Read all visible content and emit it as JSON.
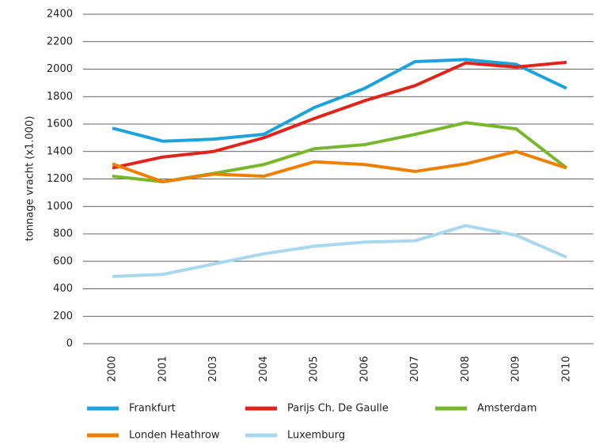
{
  "chart_data": {
    "type": "line",
    "y_label": "tonnage vracht (x1.000)",
    "categories": [
      "2000",
      "2001",
      "2003",
      "2004",
      "2005",
      "2006",
      "2007",
      "2008",
      "2009",
      "2010"
    ],
    "series": [
      {
        "name": "Frankfurt",
        "color": "#1aa3dc",
        "values": [
          1570,
          1475,
          1490,
          1525,
          1720,
          1860,
          2055,
          2070,
          2035,
          1860
        ]
      },
      {
        "name": "Parijs Ch. De Gaulle",
        "color": "#e2231a",
        "values": [
          1280,
          1360,
          1400,
          1500,
          1640,
          1770,
          1880,
          2045,
          2015,
          2050
        ]
      },
      {
        "name": "Amsterdam",
        "color": "#76b82a",
        "values": [
          1220,
          1180,
          1240,
          1305,
          1420,
          1450,
          1525,
          1610,
          1565,
          1280
        ]
      },
      {
        "name": "Londen Heathrow",
        "color": "#ee7f00",
        "values": [
          1310,
          1180,
          1235,
          1220,
          1325,
          1305,
          1255,
          1310,
          1400,
          1280
        ]
      },
      {
        "name": "Luxemburg",
        "color": "#a8d8f0",
        "values": [
          490,
          505,
          580,
          655,
          710,
          740,
          750,
          860,
          790,
          630
        ]
      }
    ],
    "ylim": [
      0,
      2400
    ],
    "yticks": [
      0,
      200,
      400,
      600,
      800,
      1000,
      1200,
      1400,
      1600,
      1800,
      2000,
      2200,
      2400
    ],
    "grid": true
  }
}
